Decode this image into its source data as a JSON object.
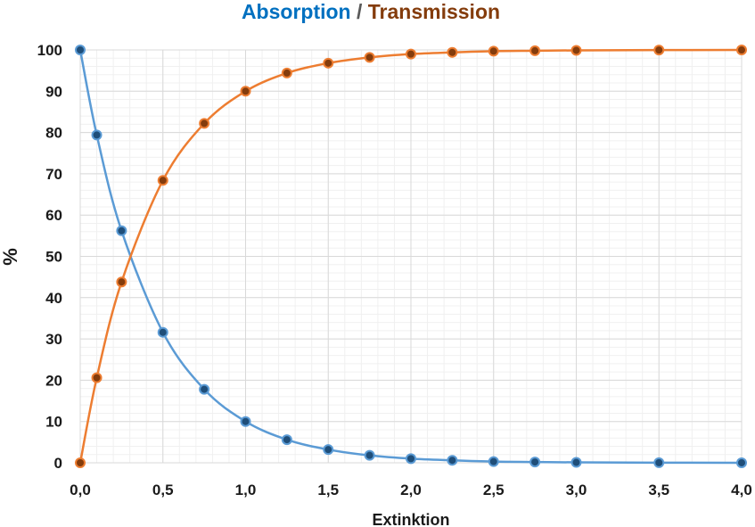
{
  "chart_data": {
    "type": "line",
    "title": {
      "part1": "Absorption",
      "separator": " / ",
      "part2": "Transmission"
    },
    "xlabel": "Extinktion",
    "ylabel": "%",
    "xlim": [
      0,
      4
    ],
    "ylim": [
      0,
      100
    ],
    "x_ticks": [
      {
        "value": 0,
        "label": "0,0"
      },
      {
        "value": 0.5,
        "label": "0,5"
      },
      {
        "value": 1.0,
        "label": "1,0"
      },
      {
        "value": 1.5,
        "label": "1,5"
      },
      {
        "value": 2.0,
        "label": "2,0"
      },
      {
        "value": 2.5,
        "label": "2,5"
      },
      {
        "value": 3.0,
        "label": "3,0"
      },
      {
        "value": 3.5,
        "label": "3,5"
      },
      {
        "value": 4.0,
        "label": "4,0"
      }
    ],
    "y_ticks": [
      {
        "value": 0,
        "label": "0"
      },
      {
        "value": 10,
        "label": "10"
      },
      {
        "value": 20,
        "label": "20"
      },
      {
        "value": 30,
        "label": "30"
      },
      {
        "value": 40,
        "label": "40"
      },
      {
        "value": 50,
        "label": "50"
      },
      {
        "value": 60,
        "label": "60"
      },
      {
        "value": 70,
        "label": "70"
      },
      {
        "value": 80,
        "label": "80"
      },
      {
        "value": 90,
        "label": "90"
      },
      {
        "value": 100,
        "label": "100"
      }
    ],
    "grid": true,
    "x": [
      0,
      0.1,
      0.25,
      0.5,
      0.75,
      1.0,
      1.25,
      1.5,
      1.75,
      2.0,
      2.25,
      2.5,
      2.75,
      3.0,
      3.5,
      4.0
    ],
    "series": [
      {
        "key": "absorption",
        "values": [
          100,
          79.4,
          56.2,
          31.6,
          17.8,
          10.0,
          5.6,
          3.2,
          1.8,
          1.0,
          0.6,
          0.3,
          0.2,
          0.1,
          0.03,
          0.01
        ],
        "color": "#5b9bd5",
        "marker_color": "#1f4e79"
      },
      {
        "key": "transmission",
        "values": [
          0,
          20.6,
          43.8,
          68.4,
          82.2,
          90.0,
          94.4,
          96.8,
          98.2,
          99.0,
          99.4,
          99.7,
          99.8,
          99.9,
          99.97,
          99.99
        ],
        "color": "#ed7d31",
        "marker_color": "#843c0c"
      }
    ],
    "colors": {
      "title_part1": "#0070c0",
      "title_separator": "#595959",
      "title_part2": "#843c0c",
      "grid_major": "#d9d9d9",
      "grid_minor": "#f0f0f0"
    }
  }
}
